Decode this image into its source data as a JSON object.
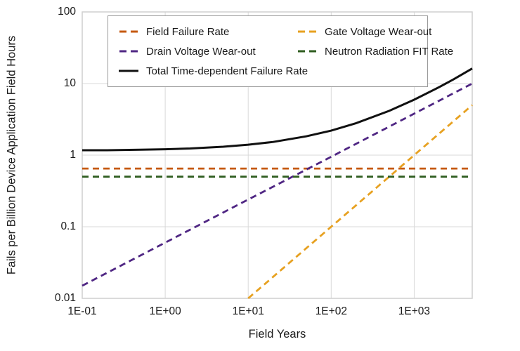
{
  "chart_data": {
    "type": "line",
    "title": "",
    "xlabel": "Field Years",
    "ylabel": "Fails per Billion Device Application Field Hours",
    "x_scale": "log",
    "y_scale": "log",
    "xlim": [
      0.1,
      5000
    ],
    "ylim": [
      0.01,
      100
    ],
    "grid": true,
    "grid_color": "#d9d9d9",
    "border_color": "#cfcfcf",
    "x_ticks": [
      {
        "value": 0.1,
        "label": "1E-01"
      },
      {
        "value": 1,
        "label": "1E+00"
      },
      {
        "value": 10,
        "label": "1E+01"
      },
      {
        "value": 100,
        "label": "1E+02"
      },
      {
        "value": 1000,
        "label": "1E+03"
      }
    ],
    "y_ticks": [
      {
        "value": 100,
        "label": "100"
      },
      {
        "value": 10,
        "label": "10"
      },
      {
        "value": 1,
        "label": "1"
      },
      {
        "value": 0.1,
        "label": "0.1"
      },
      {
        "value": 0.01,
        "label": "0.01"
      }
    ],
    "legend": {
      "position": "top-inside",
      "columns": 2,
      "border_color": "#9a9a9a"
    },
    "series": [
      {
        "name": "Field Failure Rate",
        "color": "#c55a11",
        "style": "dashed",
        "model": "constant at 0.65 FIT",
        "x": [
          0.1,
          5000
        ],
        "y": [
          0.65,
          0.65
        ]
      },
      {
        "name": "Gate Voltage Wear-out",
        "color": "#e7a121",
        "style": "dashed",
        "model": "power law: y = x/1000, from (10, 0.01) to (5000, 5)",
        "x": [
          10,
          100,
          1000,
          5000
        ],
        "y": [
          0.01,
          0.1,
          1,
          5
        ]
      },
      {
        "name": "Drain Voltage Wear-out",
        "color": "#4f2683",
        "style": "dashed",
        "model": "power law slope 0.60/decade, from (0.1, 0.015) to (5000, 10)",
        "x": [
          0.1,
          1,
          10,
          100,
          1000,
          5000
        ],
        "y": [
          0.015,
          0.06,
          0.24,
          0.95,
          3.8,
          10
        ]
      },
      {
        "name": "Neutron Radiation FIT Rate",
        "color": "#2f5d20",
        "style": "dashed",
        "model": "constant at 0.5 FIT",
        "x": [
          0.1,
          5000
        ],
        "y": [
          0.5,
          0.5
        ]
      },
      {
        "name": "Total Time-dependent Failure Rate",
        "color": "#111111",
        "style": "solid",
        "model": "sum of all four components",
        "x": [
          0.1,
          0.2,
          0.5,
          1,
          2,
          5,
          10,
          20,
          50,
          100,
          200,
          500,
          1000,
          2000,
          3000,
          5000
        ],
        "y": [
          1.17,
          1.17,
          1.19,
          1.21,
          1.24,
          1.31,
          1.4,
          1.53,
          1.83,
          2.2,
          2.8,
          4.16,
          5.95,
          8.92,
          11.5,
          16.2
        ]
      }
    ]
  }
}
